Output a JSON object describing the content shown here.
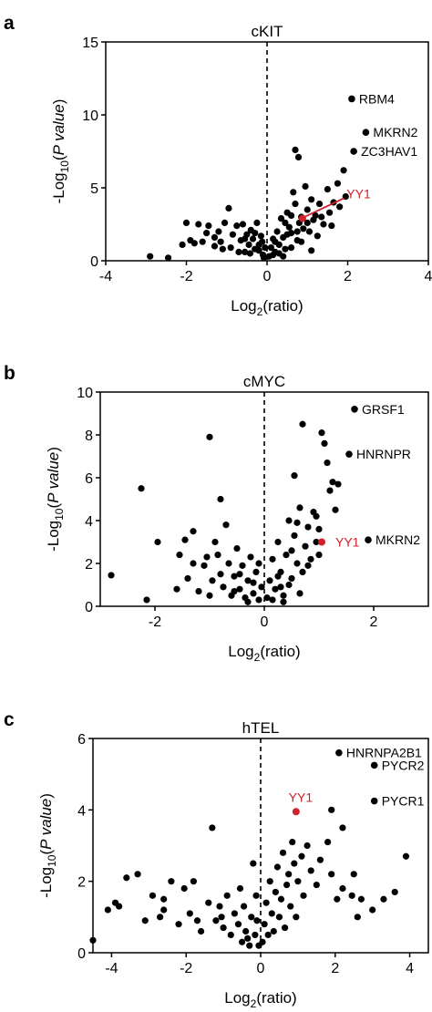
{
  "chart_data": [
    {
      "panel": "a",
      "type": "scatter",
      "title": "cKIT",
      "xlabel": {
        "main": "Log",
        "sub": "2",
        "rest": "(ratio)"
      },
      "ylabel": {
        "pre": "-Log",
        "sub": "10",
        "mid": "(",
        "ital": "P value",
        "post": ")"
      },
      "xlim": [
        -4,
        4
      ],
      "ylim": [
        0,
        15
      ],
      "xticks": [
        -4,
        -2,
        0,
        2,
        4
      ],
      "yticks": [
        0,
        5,
        10,
        15
      ],
      "point_color": "#000000",
      "highlight_color": "#d0202a",
      "points": [
        [
          -2.9,
          0.3
        ],
        [
          -2.45,
          0.2
        ],
        [
          -2.1,
          1.1
        ],
        [
          -2.0,
          2.6
        ],
        [
          -1.9,
          1.4
        ],
        [
          -1.8,
          1.2
        ],
        [
          -1.7,
          2.5
        ],
        [
          -1.6,
          1.3
        ],
        [
          -1.5,
          1.9
        ],
        [
          -1.45,
          2.4
        ],
        [
          -1.3,
          1.0
        ],
        [
          -1.2,
          2.0
        ],
        [
          -1.1,
          0.8
        ],
        [
          -1.05,
          2.6
        ],
        [
          -0.95,
          3.6
        ],
        [
          -0.85,
          1.8
        ],
        [
          -0.75,
          2.4
        ],
        [
          -0.65,
          1.4
        ],
        [
          -0.6,
          2.5
        ],
        [
          -0.55,
          0.6
        ],
        [
          -0.5,
          1.8
        ],
        [
          -0.45,
          1.1
        ],
        [
          -0.4,
          2.1
        ],
        [
          -0.35,
          1.5
        ],
        [
          -0.3,
          0.8
        ],
        [
          -0.25,
          2.6
        ],
        [
          -0.2,
          1.1
        ],
        [
          -0.15,
          1.7
        ],
        [
          -0.1,
          0.4
        ],
        [
          -0.05,
          0.9
        ],
        [
          -1.3,
          1.6
        ],
        [
          -1.15,
          1.3
        ],
        [
          -0.9,
          0.9
        ],
        [
          -0.7,
          0.6
        ],
        [
          -0.55,
          1.5
        ],
        [
          -0.42,
          0.5
        ],
        [
          -0.3,
          1.9
        ],
        [
          -0.2,
          0.7
        ],
        [
          -0.12,
          1.3
        ],
        [
          -0.08,
          0.2
        ],
        [
          0.05,
          0.3
        ],
        [
          0.1,
          0.9
        ],
        [
          0.15,
          1.5
        ],
        [
          0.2,
          0.6
        ],
        [
          0.25,
          2.0
        ],
        [
          0.3,
          1.1
        ],
        [
          0.35,
          2.9
        ],
        [
          0.4,
          1.6
        ],
        [
          0.45,
          0.8
        ],
        [
          0.5,
          3.3
        ],
        [
          0.55,
          2.3
        ],
        [
          0.6,
          1.9
        ],
        [
          0.65,
          4.7
        ],
        [
          0.7,
          3.9
        ],
        [
          0.75,
          1.4
        ],
        [
          0.8,
          2.6
        ],
        [
          0.85,
          3.0
        ],
        [
          0.9,
          2.2
        ],
        [
          0.95,
          5.1
        ],
        [
          1.0,
          3.5
        ],
        [
          1.05,
          2.0
        ],
        [
          1.1,
          4.2
        ],
        [
          1.15,
          2.8
        ],
        [
          1.2,
          3.1
        ],
        [
          1.3,
          3.9
        ],
        [
          1.4,
          2.5
        ],
        [
          1.5,
          4.9
        ],
        [
          1.55,
          3.3
        ],
        [
          1.65,
          4.0
        ],
        [
          1.75,
          5.3
        ],
        [
          1.8,
          3.7
        ],
        [
          1.9,
          6.2
        ],
        [
          1.95,
          4.4
        ],
        [
          0.7,
          7.6
        ],
        [
          0.78,
          7.1
        ],
        [
          0.3,
          0.5
        ],
        [
          0.45,
          2.6
        ],
        [
          0.6,
          0.9
        ],
        [
          0.75,
          2.0
        ],
        [
          1.25,
          1.7
        ],
        [
          1.1,
          0.7
        ],
        [
          0.2,
          1.3
        ],
        [
          0.5,
          1.8
        ],
        [
          1.35,
          3.0
        ],
        [
          0.15,
          0.4
        ],
        [
          0.4,
          0.3
        ],
        [
          0.85,
          1.3
        ],
        [
          1.0,
          2.6
        ],
        [
          1.6,
          2.4
        ],
        [
          0.6,
          3.1
        ]
      ],
      "highlight": {
        "label": "YY1",
        "x": 0.88,
        "y": 2.9,
        "label_x": 1.95,
        "label_y": 4.6
      },
      "labeled_points": [
        {
          "label": "RBM4",
          "x": 2.1,
          "y": 11.1
        },
        {
          "label": "MKRN2",
          "x": 2.45,
          "y": 8.8
        },
        {
          "label": "ZC3HAV1",
          "x": 2.15,
          "y": 7.5
        }
      ]
    },
    {
      "panel": "b",
      "type": "scatter",
      "title": "cMYC",
      "xlabel": {
        "main": "Log",
        "sub": "2",
        "rest": "(ratio)"
      },
      "ylabel": {
        "pre": "-Log",
        "sub": "10",
        "mid": "(",
        "ital": "P value",
        "post": ")"
      },
      "xlim": [
        -3,
        3
      ],
      "ylim": [
        0,
        10
      ],
      "xticks": [
        -2,
        0,
        2
      ],
      "yticks": [
        0,
        2,
        4,
        6,
        8,
        10
      ],
      "point_color": "#000000",
      "highlight_color": "#d0202a",
      "points": [
        [
          -2.8,
          1.45
        ],
        [
          -2.25,
          5.5
        ],
        [
          -2.15,
          0.3
        ],
        [
          -1.95,
          3.0
        ],
        [
          -1.6,
          0.8
        ],
        [
          -1.55,
          2.4
        ],
        [
          -1.4,
          1.3
        ],
        [
          -1.3,
          3.5
        ],
        [
          -1.2,
          0.7
        ],
        [
          -1.1,
          1.9
        ],
        [
          -1.05,
          2.3
        ],
        [
          -1.0,
          7.9
        ],
        [
          -0.95,
          1.2
        ],
        [
          -0.9,
          3.0
        ],
        [
          -0.8,
          1.5
        ],
        [
          -0.75,
          0.9
        ],
        [
          -0.7,
          3.8
        ],
        [
          -0.65,
          2.0
        ],
        [
          -0.6,
          0.5
        ],
        [
          -0.55,
          1.4
        ],
        [
          -0.5,
          2.7
        ],
        [
          -0.45,
          0.8
        ],
        [
          -0.4,
          1.9
        ],
        [
          -0.35,
          0.4
        ],
        [
          -0.3,
          1.2
        ],
        [
          -0.25,
          2.3
        ],
        [
          -0.2,
          0.6
        ],
        [
          -0.15,
          1.6
        ],
        [
          -0.1,
          0.3
        ],
        [
          -0.05,
          0.9
        ],
        [
          -0.8,
          5.0
        ],
        [
          -1.45,
          3.1
        ],
        [
          -1.3,
          2.0
        ],
        [
          -1.0,
          0.5
        ],
        [
          -0.85,
          2.4
        ],
        [
          -0.55,
          0.7
        ],
        [
          -0.45,
          1.5
        ],
        [
          -0.3,
          0.2
        ],
        [
          -0.2,
          1.1
        ],
        [
          -0.1,
          2.0
        ],
        [
          0.05,
          0.4
        ],
        [
          0.1,
          1.2
        ],
        [
          0.15,
          2.2
        ],
        [
          0.2,
          0.8
        ],
        [
          0.25,
          3.0
        ],
        [
          0.3,
          1.6
        ],
        [
          0.35,
          0.5
        ],
        [
          0.4,
          2.4
        ],
        [
          0.45,
          4.0
        ],
        [
          0.5,
          1.3
        ],
        [
          0.55,
          3.3
        ],
        [
          0.6,
          2.0
        ],
        [
          0.65,
          4.6
        ],
        [
          0.7,
          1.6
        ],
        [
          0.75,
          2.8
        ],
        [
          0.8,
          3.7
        ],
        [
          0.85,
          2.2
        ],
        [
          0.9,
          4.4
        ],
        [
          0.95,
          3.0
        ],
        [
          1.0,
          2.4
        ],
        [
          1.05,
          8.1
        ],
        [
          1.1,
          7.6
        ],
        [
          1.15,
          6.7
        ],
        [
          1.2,
          5.4
        ],
        [
          1.25,
          5.8
        ],
        [
          1.35,
          5.7
        ],
        [
          1.3,
          4.5
        ],
        [
          0.7,
          8.5
        ],
        [
          0.55,
          6.1
        ],
        [
          0.35,
          0.2
        ],
        [
          0.45,
          1.0
        ],
        [
          0.65,
          0.6
        ],
        [
          0.8,
          1.9
        ],
        [
          0.95,
          4.2
        ],
        [
          0.3,
          0.9
        ],
        [
          0.6,
          3.9
        ],
        [
          1.0,
          3.6
        ],
        [
          0.25,
          1.4
        ],
        [
          0.15,
          0.3
        ],
        [
          0.5,
          2.6
        ]
      ],
      "highlight": {
        "label": "YY1",
        "x": 1.05,
        "y": 3.0,
        "label_x": 1.3,
        "label_y": 3.0
      },
      "labeled_points": [
        {
          "label": "GRSF1",
          "x": 1.65,
          "y": 9.2
        },
        {
          "label": "HNRNPR",
          "x": 1.55,
          "y": 7.1
        },
        {
          "label": "MKRN2",
          "x": 1.9,
          "y": 3.1
        }
      ]
    },
    {
      "panel": "c",
      "type": "scatter",
      "title": "hTEL",
      "xlabel": {
        "main": "Log",
        "sub": "2",
        "rest": "(ratio)"
      },
      "ylabel": {
        "pre": "-Log",
        "sub": "10",
        "mid": "(",
        "ital": "P value",
        "post": ")"
      },
      "xlim": [
        -4.5,
        4.5
      ],
      "ylim": [
        0,
        6
      ],
      "xticks": [
        -4,
        -2,
        0,
        2,
        4
      ],
      "yticks": [
        0,
        2,
        4,
        6
      ],
      "point_color": "#000000",
      "highlight_color": "#d0202a",
      "points": [
        [
          -4.5,
          0.35
        ],
        [
          -4.1,
          1.2
        ],
        [
          -3.9,
          1.4
        ],
        [
          -3.8,
          1.3
        ],
        [
          -3.6,
          2.1
        ],
        [
          -3.3,
          2.2
        ],
        [
          -3.1,
          0.9
        ],
        [
          -2.9,
          1.6
        ],
        [
          -2.7,
          1.0
        ],
        [
          -2.6,
          1.2
        ],
        [
          -2.4,
          2.0
        ],
        [
          -2.2,
          0.8
        ],
        [
          -2.05,
          1.8
        ],
        [
          -1.9,
          1.1
        ],
        [
          -1.8,
          2.0
        ],
        [
          -1.6,
          0.6
        ],
        [
          -1.4,
          1.4
        ],
        [
          -1.3,
          3.5
        ],
        [
          -1.2,
          0.9
        ],
        [
          -1.1,
          1.3
        ],
        [
          -1.0,
          0.7
        ],
        [
          -0.9,
          1.6
        ],
        [
          -0.8,
          0.5
        ],
        [
          -0.7,
          1.1
        ],
        [
          -0.6,
          0.8
        ],
        [
          -0.5,
          0.3
        ],
        [
          -0.45,
          1.3
        ],
        [
          -0.4,
          0.6
        ],
        [
          -0.3,
          0.2
        ],
        [
          -0.25,
          1.0
        ],
        [
          -0.2,
          2.5
        ],
        [
          -0.15,
          0.5
        ],
        [
          -0.1,
          0.9
        ],
        [
          -0.05,
          0.2
        ],
        [
          -2.6,
          1.5
        ],
        [
          -1.7,
          0.9
        ],
        [
          -1.05,
          1.0
        ],
        [
          -0.55,
          1.8
        ],
        [
          -0.35,
          0.4
        ],
        [
          -0.12,
          1.6
        ],
        [
          0.05,
          0.3
        ],
        [
          0.1,
          0.8
        ],
        [
          0.15,
          1.4
        ],
        [
          0.2,
          0.5
        ],
        [
          0.25,
          2.0
        ],
        [
          0.3,
          1.1
        ],
        [
          0.35,
          0.6
        ],
        [
          0.4,
          1.7
        ],
        [
          0.45,
          2.4
        ],
        [
          0.5,
          1.0
        ],
        [
          0.55,
          1.5
        ],
        [
          0.6,
          2.8
        ],
        [
          0.65,
          0.7
        ],
        [
          0.7,
          1.9
        ],
        [
          0.75,
          2.2
        ],
        [
          0.8,
          1.3
        ],
        [
          0.85,
          3.1
        ],
        [
          0.9,
          2.5
        ],
        [
          0.95,
          1.0
        ],
        [
          1.0,
          2.0
        ],
        [
          1.1,
          2.7
        ],
        [
          1.15,
          1.6
        ],
        [
          1.25,
          3.0
        ],
        [
          1.35,
          2.3
        ],
        [
          1.5,
          1.9
        ],
        [
          1.6,
          2.6
        ],
        [
          1.8,
          3.1
        ],
        [
          1.9,
          2.2
        ],
        [
          2.05,
          1.5
        ],
        [
          2.2,
          1.8
        ],
        [
          2.45,
          1.6
        ],
        [
          2.5,
          2.2
        ],
        [
          2.6,
          1.0
        ],
        [
          2.7,
          1.5
        ],
        [
          3.0,
          1.2
        ],
        [
          3.3,
          1.5
        ],
        [
          3.6,
          1.7
        ],
        [
          2.2,
          3.5
        ],
        [
          3.9,
          2.7
        ],
        [
          1.9,
          4.0
        ]
      ],
      "highlight": {
        "label": "YY1",
        "x": 0.95,
        "y": 3.95,
        "label_x": 0.75,
        "label_y": 4.35
      },
      "labeled_points": [
        {
          "label": "HNRNPA2B1",
          "x": 2.1,
          "y": 5.6
        },
        {
          "label": "PYCR2",
          "x": 3.05,
          "y": 5.25
        },
        {
          "label": "PYCR1",
          "x": 3.05,
          "y": 4.25
        }
      ]
    }
  ]
}
